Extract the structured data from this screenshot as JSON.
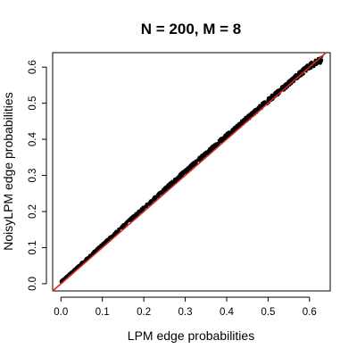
{
  "chart_data": {
    "type": "scatter",
    "title": "N = 200, M = 8",
    "xlabel": "LPM edge probabilities",
    "ylabel": "NoisyLPM edge probabilities",
    "xlim": [
      -0.02,
      0.65
    ],
    "ylim": [
      -0.02,
      0.64
    ],
    "xticks": [
      0.0,
      0.1,
      0.2,
      0.3,
      0.4,
      0.5,
      0.6
    ],
    "xtick_labels": [
      "0.0",
      "0.1",
      "0.2",
      "0.3",
      "0.4",
      "0.5",
      "0.6"
    ],
    "yticks": [
      0.0,
      0.1,
      0.2,
      0.3,
      0.4,
      0.5,
      0.6
    ],
    "ytick_labels": [
      "0.0",
      "0.1",
      "0.2",
      "0.3",
      "0.4",
      "0.5",
      "0.6"
    ],
    "grid": false,
    "legend": "none",
    "reference_line": {
      "intercept": 0,
      "slope": 1,
      "color": "#d62728"
    },
    "series": [
      {
        "color": "#000000",
        "x": [
          0.0,
          0.02,
          0.04,
          0.06,
          0.08,
          0.1,
          0.12,
          0.14,
          0.16,
          0.18,
          0.2,
          0.22,
          0.24,
          0.26,
          0.28,
          0.3,
          0.32,
          0.34,
          0.36,
          0.38,
          0.4,
          0.42,
          0.44,
          0.46,
          0.48,
          0.5,
          0.52,
          0.54,
          0.56,
          0.58,
          0.6,
          0.62,
          0.63
        ],
        "y": [
          0.005,
          0.025,
          0.046,
          0.066,
          0.087,
          0.108,
          0.128,
          0.149,
          0.17,
          0.19,
          0.21,
          0.23,
          0.251,
          0.271,
          0.291,
          0.311,
          0.331,
          0.351,
          0.37,
          0.39,
          0.41,
          0.429,
          0.449,
          0.468,
          0.488,
          0.507,
          0.526,
          0.545,
          0.565,
          0.584,
          0.603,
          0.615,
          0.62
        ]
      }
    ]
  }
}
